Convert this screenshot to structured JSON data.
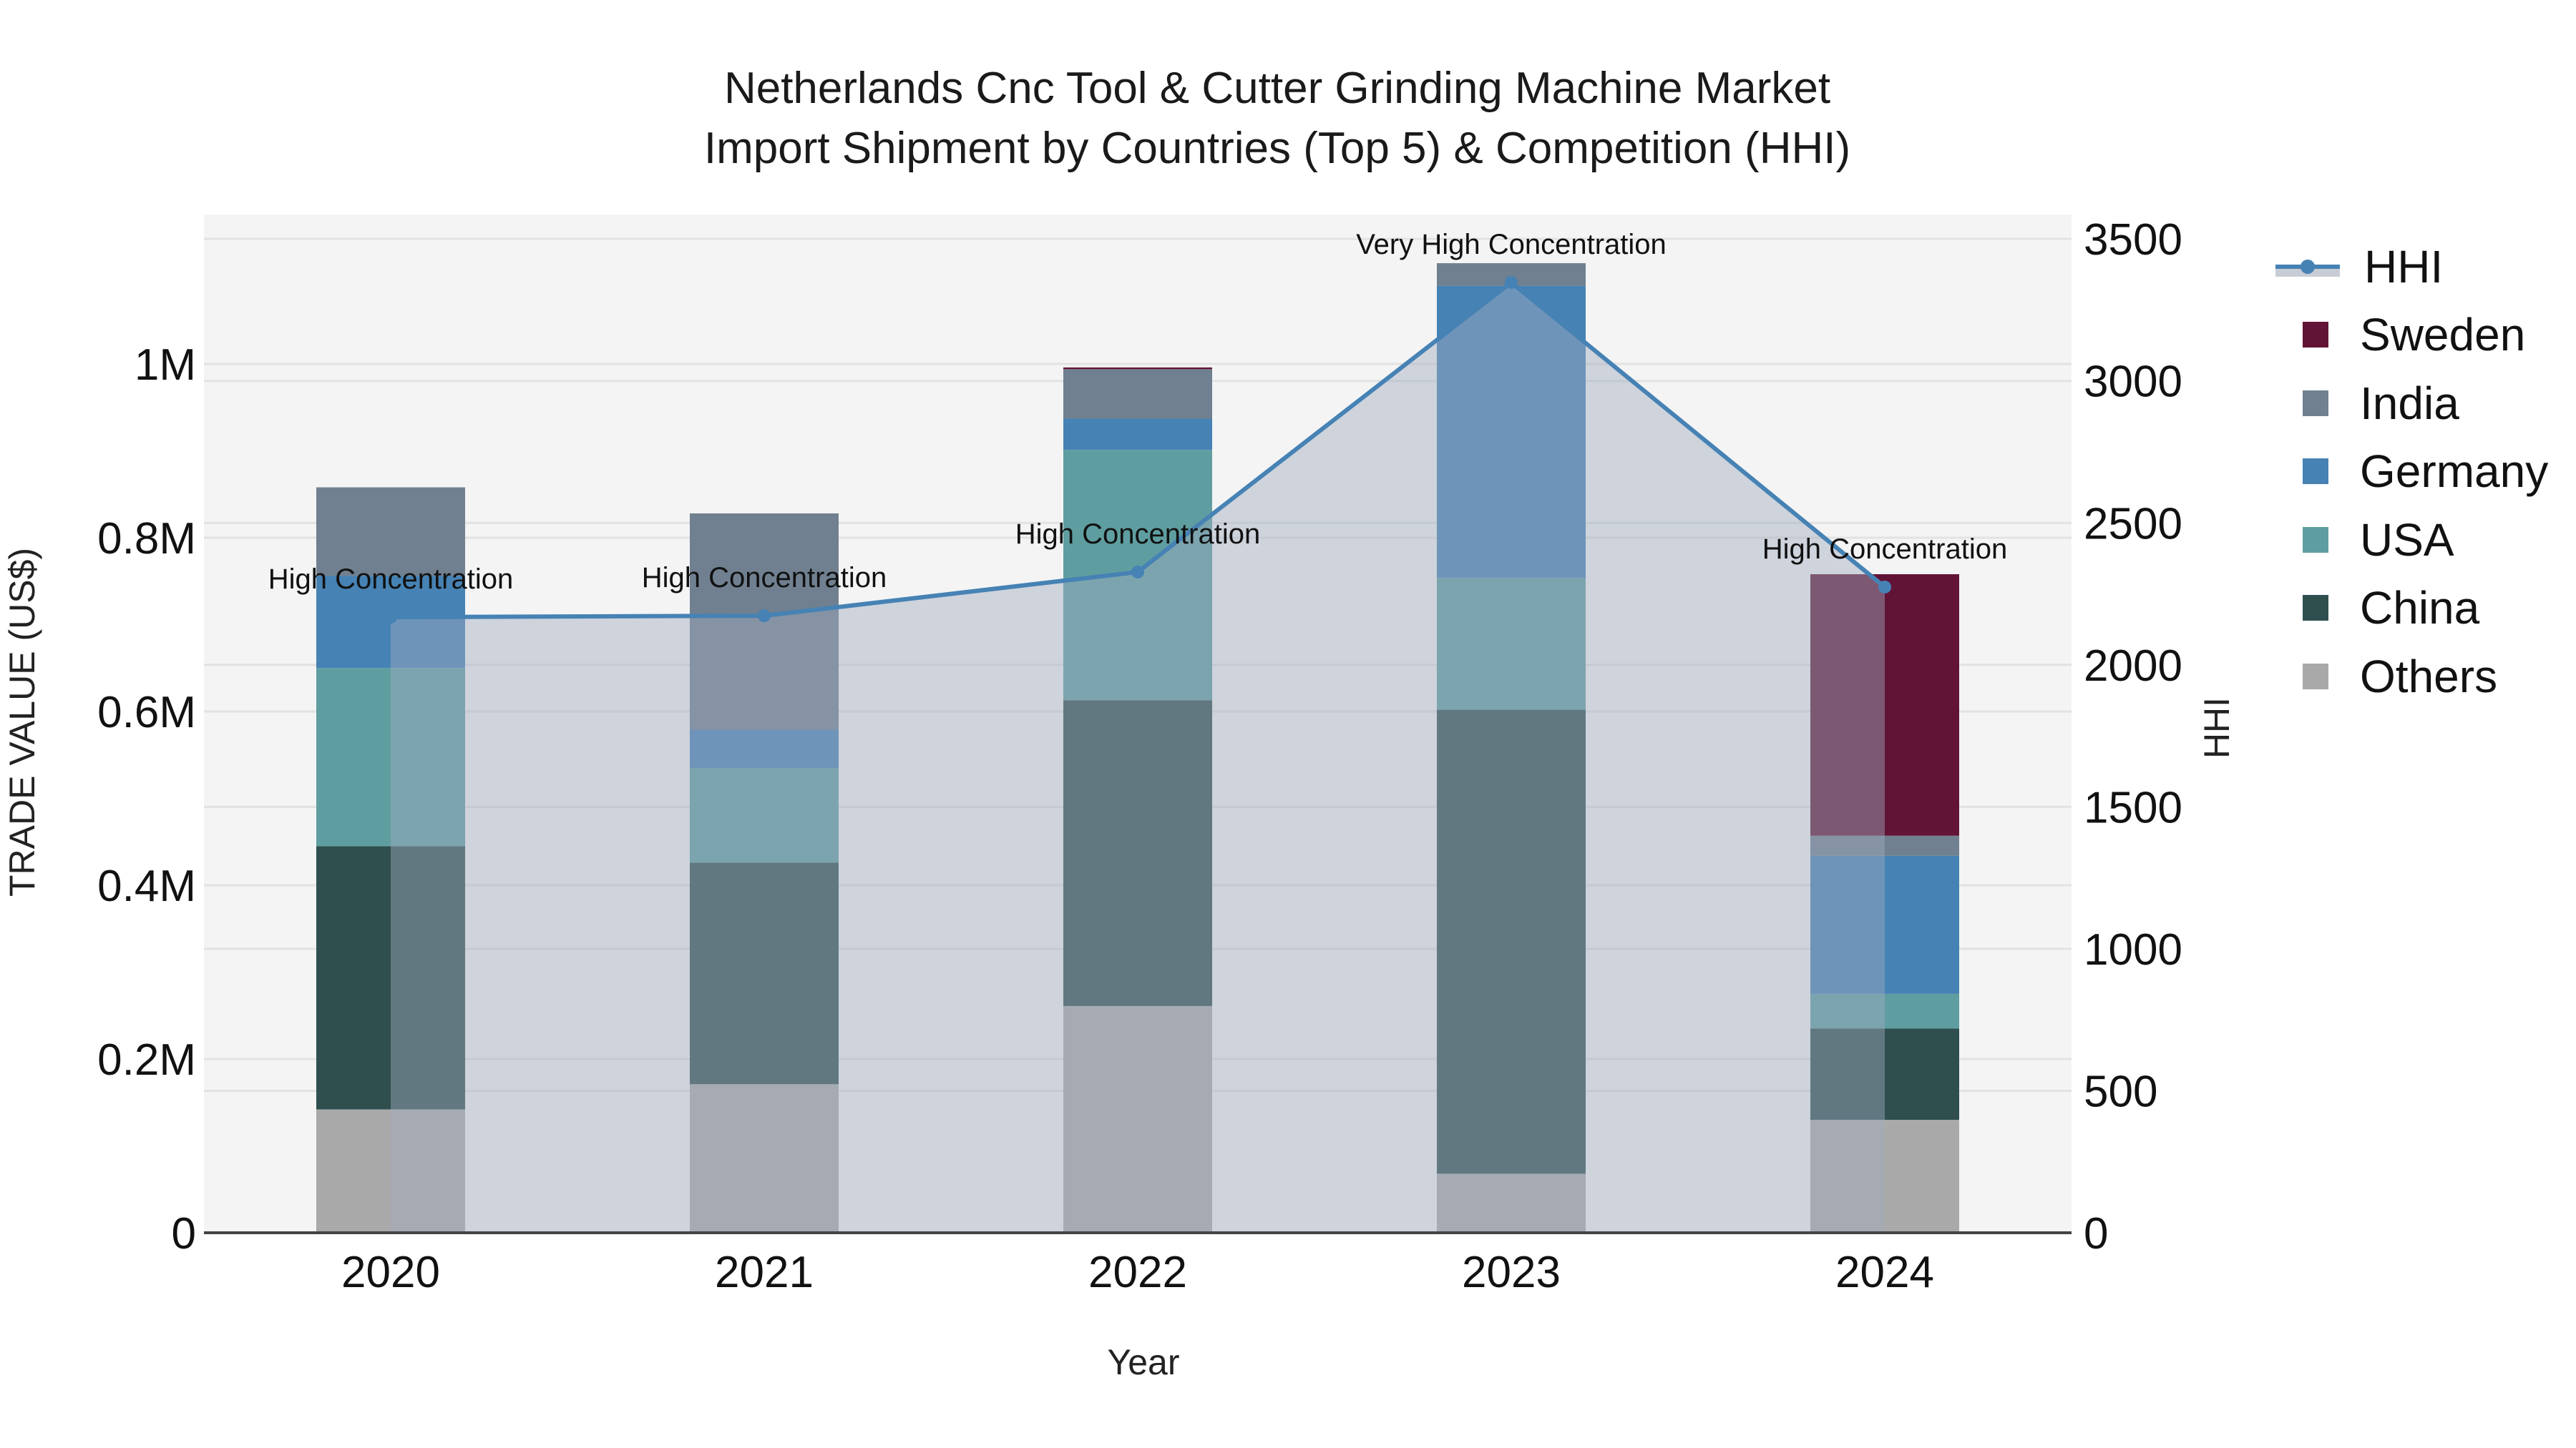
{
  "title": {
    "line1": "Netherlands Cnc Tool & Cutter Grinding Machine Market",
    "line2": "Import Shipment by Countries (Top 5) & Competition (HHI)"
  },
  "legend": {
    "items": [
      {
        "label": "HHI",
        "type": "line",
        "color": "#4682b4"
      },
      {
        "label": "Sweden",
        "type": "bar",
        "color": "#611436"
      },
      {
        "label": "India",
        "type": "bar",
        "color": "#708090"
      },
      {
        "label": "Germany",
        "type": "bar",
        "color": "#4682b4"
      },
      {
        "label": "USA",
        "type": "bar",
        "color": "#5f9ea0"
      },
      {
        "label": "China",
        "type": "bar",
        "color": "#2f4f4f"
      },
      {
        "label": "Others",
        "type": "bar",
        "color": "#a9a9a9"
      }
    ]
  },
  "chart_data": {
    "type": "bar",
    "stacked": true,
    "title": "Netherlands Cnc Tool & Cutter Grinding Machine Market Import Shipment by Countries (Top 5) & Competition (HHI)",
    "xlabel": "Year",
    "ylabel": "TRADE VALUE (US$)",
    "y2label": "HHI",
    "categories": [
      "2020",
      "2021",
      "2022",
      "2023",
      "2024"
    ],
    "ylim": [
      0,
      1170000
    ],
    "y2lim": [
      0,
      3585
    ],
    "yticks": [
      {
        "v": 0,
        "label": "0"
      },
      {
        "v": 200000,
        "label": "0.2M"
      },
      {
        "v": 400000,
        "label": "0.4M"
      },
      {
        "v": 600000,
        "label": "0.6M"
      },
      {
        "v": 800000,
        "label": "0.8M"
      },
      {
        "v": 1000000,
        "label": "1M"
      }
    ],
    "y2ticks": [
      0,
      500,
      1000,
      1500,
      2000,
      2500,
      3000,
      3500
    ],
    "series": [
      {
        "name": "Others",
        "color": "#a9a9a9",
        "values": [
          142000,
          171000,
          261000,
          68000,
          130000
        ]
      },
      {
        "name": "China",
        "color": "#2f4f4f",
        "values": [
          303000,
          255000,
          352000,
          534000,
          105000
        ]
      },
      {
        "name": "USA",
        "color": "#5f9ea0",
        "values": [
          205000,
          109000,
          288000,
          152000,
          40000
        ]
      },
      {
        "name": "Germany",
        "color": "#4682b4",
        "values": [
          106000,
          44000,
          36000,
          336000,
          159000
        ]
      },
      {
        "name": "India",
        "color": "#708090",
        "values": [
          102000,
          249000,
          57000,
          26000,
          23000
        ]
      },
      {
        "name": "Sweden",
        "color": "#611436",
        "values": [
          0,
          0,
          2000,
          0,
          301000
        ]
      }
    ],
    "line_series": {
      "name": "HHI",
      "axis": "y2",
      "color": "#4682b4",
      "values": [
        2168,
        2173,
        2327,
        3347,
        2274
      ],
      "annotations": [
        "High Concentration",
        "High Concentration",
        "High Concentration",
        "Very High Concentration",
        "High Concentration"
      ]
    },
    "grid": true,
    "legend_position": "right"
  }
}
